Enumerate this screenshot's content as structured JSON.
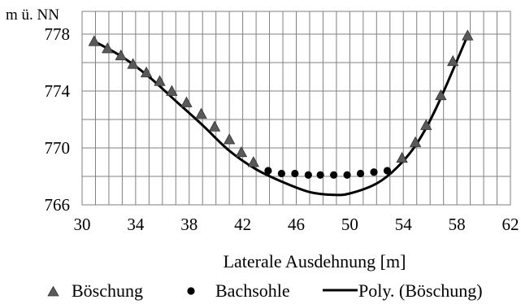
{
  "chart_data": {
    "type": "scatter",
    "title": "",
    "xlabel": "Laterale Ausdehnung [m]",
    "ylabel": "m ü. NN",
    "xlim": [
      30,
      62
    ],
    "ylim": [
      766,
      779.6
    ],
    "xticks": [
      30,
      34,
      38,
      42,
      46,
      50,
      54,
      58,
      62
    ],
    "yticks": [
      766,
      770,
      774,
      778
    ],
    "grid": true,
    "legend_position": "bottom",
    "series": [
      {
        "name": "Böschung",
        "marker": "triangle",
        "color": "#595959",
        "x": [
          30.9,
          31.9,
          32.9,
          33.8,
          34.8,
          35.8,
          36.7,
          37.8,
          38.9,
          39.9,
          41.0,
          41.9,
          42.8,
          53.9,
          54.9,
          55.7,
          56.8,
          57.7,
          58.8
        ],
        "y": [
          777.5,
          777.0,
          776.5,
          775.9,
          775.3,
          774.7,
          774.0,
          773.2,
          772.4,
          771.5,
          770.6,
          769.7,
          769.0,
          769.3,
          770.4,
          771.6,
          773.7,
          776.1,
          777.9
        ]
      },
      {
        "name": "Bachsohle",
        "marker": "circle",
        "color": "#000000",
        "x": [
          43.9,
          44.9,
          45.9,
          46.9,
          47.8,
          48.8,
          49.8,
          50.8,
          51.8,
          52.8
        ],
        "y": [
          768.4,
          768.2,
          768.2,
          768.1,
          768.1,
          768.1,
          768.1,
          768.2,
          768.3,
          768.4
        ]
      },
      {
        "name": "Poly. (Böschung)",
        "type": "line",
        "color": "#000000",
        "x": [
          30.9,
          33.0,
          35.0,
          37.0,
          39.0,
          41.0,
          43.0,
          45.0,
          47.0,
          48.8,
          50.0,
          52.0,
          53.5,
          55.0,
          56.5,
          58.8
        ],
        "y": [
          777.5,
          776.4,
          775.0,
          773.3,
          771.6,
          769.8,
          768.5,
          767.6,
          766.9,
          766.7,
          766.8,
          767.5,
          768.6,
          770.3,
          772.9,
          777.9
        ]
      }
    ]
  }
}
